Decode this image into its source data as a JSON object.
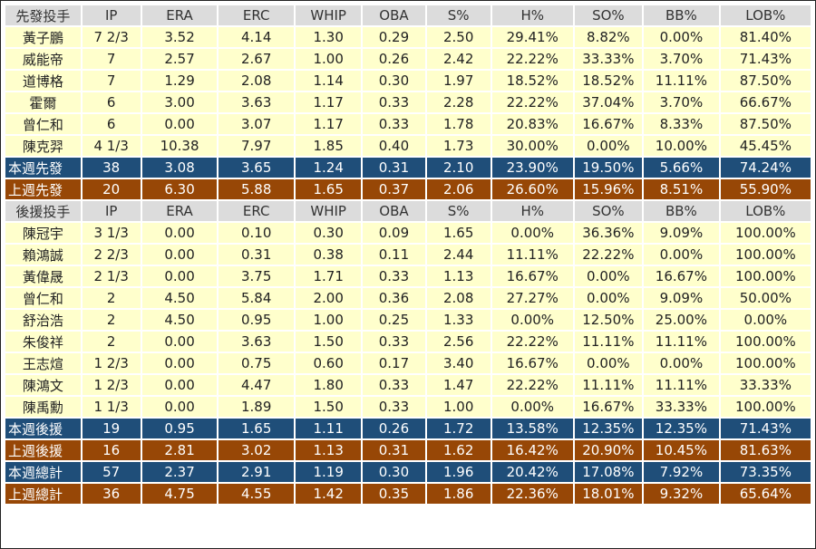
{
  "columns": [
    "IP",
    "ERA",
    "ERC",
    "WHIP",
    "OBA",
    "S%",
    "H%",
    "SO%",
    "BB%",
    "LOB%"
  ],
  "sections": [
    {
      "header": "先發投手",
      "rows": [
        [
          "黃子鵬",
          "7 2/3",
          "3.52",
          "4.14",
          "1.30",
          "0.29",
          "2.50",
          "29.41%",
          "8.82%",
          "0.00%",
          "81.40%"
        ],
        [
          "威能帝",
          "7",
          "2.57",
          "2.67",
          "1.00",
          "0.26",
          "2.42",
          "22.22%",
          "33.33%",
          "3.70%",
          "71.43%"
        ],
        [
          "道博格",
          "7",
          "1.29",
          "2.08",
          "1.14",
          "0.30",
          "1.97",
          "18.52%",
          "18.52%",
          "11.11%",
          "87.50%"
        ],
        [
          "霍爾",
          "6",
          "3.00",
          "3.63",
          "1.17",
          "0.33",
          "2.28",
          "22.22%",
          "37.04%",
          "3.70%",
          "66.67%"
        ],
        [
          "曾仁和",
          "6",
          "0.00",
          "3.07",
          "1.17",
          "0.33",
          "1.78",
          "20.83%",
          "16.67%",
          "8.33%",
          "87.50%"
        ],
        [
          "陳克羿",
          "4 1/3",
          "10.38",
          "7.97",
          "1.85",
          "0.40",
          "1.73",
          "30.00%",
          "0.00%",
          "10.00%",
          "45.45%"
        ]
      ],
      "summaries": [
        {
          "style": "blue",
          "cells": [
            "本週先發",
            "38",
            "3.08",
            "3.65",
            "1.24",
            "0.31",
            "2.10",
            "23.90%",
            "19.50%",
            "5.66%",
            "74.24%"
          ]
        },
        {
          "style": "brown",
          "cells": [
            "上週先發",
            "20",
            "6.30",
            "5.88",
            "1.65",
            "0.37",
            "2.06",
            "26.60%",
            "15.96%",
            "8.51%",
            "55.90%"
          ]
        }
      ]
    },
    {
      "header": "後援投手",
      "rows": [
        [
          "陳冠宇",
          "3 1/3",
          "0.00",
          "0.10",
          "0.30",
          "0.09",
          "1.65",
          "0.00%",
          "36.36%",
          "9.09%",
          "100.00%"
        ],
        [
          "賴鴻誠",
          "2 2/3",
          "0.00",
          "0.31",
          "0.38",
          "0.11",
          "2.44",
          "11.11%",
          "22.22%",
          "0.00%",
          "100.00%"
        ],
        [
          "黃偉晟",
          "2 1/3",
          "0.00",
          "3.75",
          "1.71",
          "0.33",
          "1.13",
          "16.67%",
          "0.00%",
          "16.67%",
          "100.00%"
        ],
        [
          "曾仁和",
          "2",
          "4.50",
          "5.84",
          "2.00",
          "0.36",
          "2.08",
          "27.27%",
          "0.00%",
          "9.09%",
          "50.00%"
        ],
        [
          "舒治浩",
          "2",
          "4.50",
          "0.95",
          "1.00",
          "0.25",
          "1.33",
          "0.00%",
          "12.50%",
          "25.00%",
          "0.00%"
        ],
        [
          "朱俊祥",
          "2",
          "0.00",
          "3.63",
          "1.50",
          "0.33",
          "2.56",
          "22.22%",
          "11.11%",
          "11.11%",
          "100.00%"
        ],
        [
          "王志煊",
          "1 2/3",
          "0.00",
          "0.75",
          "0.60",
          "0.17",
          "3.40",
          "16.67%",
          "0.00%",
          "0.00%",
          "100.00%"
        ],
        [
          "陳鴻文",
          "1 2/3",
          "0.00",
          "4.47",
          "1.80",
          "0.33",
          "1.47",
          "22.22%",
          "11.11%",
          "11.11%",
          "33.33%"
        ],
        [
          "陳禹勳",
          "1 1/3",
          "0.00",
          "1.89",
          "1.50",
          "0.33",
          "1.00",
          "0.00%",
          "16.67%",
          "33.33%",
          "100.00%"
        ]
      ],
      "summaries": [
        {
          "style": "blue",
          "cells": [
            "本週後援",
            "19",
            "0.95",
            "1.65",
            "1.11",
            "0.26",
            "1.72",
            "13.58%",
            "12.35%",
            "12.35%",
            "71.43%"
          ]
        },
        {
          "style": "brown",
          "cells": [
            "上週後援",
            "16",
            "2.81",
            "3.02",
            "1.13",
            "0.31",
            "1.62",
            "16.42%",
            "20.90%",
            "10.45%",
            "81.63%"
          ]
        },
        {
          "style": "blue",
          "cells": [
            "本週總計",
            "57",
            "2.37",
            "2.91",
            "1.19",
            "0.30",
            "1.96",
            "20.42%",
            "17.08%",
            "7.92%",
            "73.35%"
          ]
        },
        {
          "style": "brown",
          "cells": [
            "上週總計",
            "36",
            "4.75",
            "4.55",
            "1.42",
            "0.35",
            "1.86",
            "22.36%",
            "18.01%",
            "9.32%",
            "65.64%"
          ]
        }
      ]
    }
  ],
  "colors": {
    "header_bg": "#dcdcdc",
    "row_bg": "#ffffcc",
    "summary_blue": "#1f4e79",
    "summary_brown": "#974706"
  }
}
